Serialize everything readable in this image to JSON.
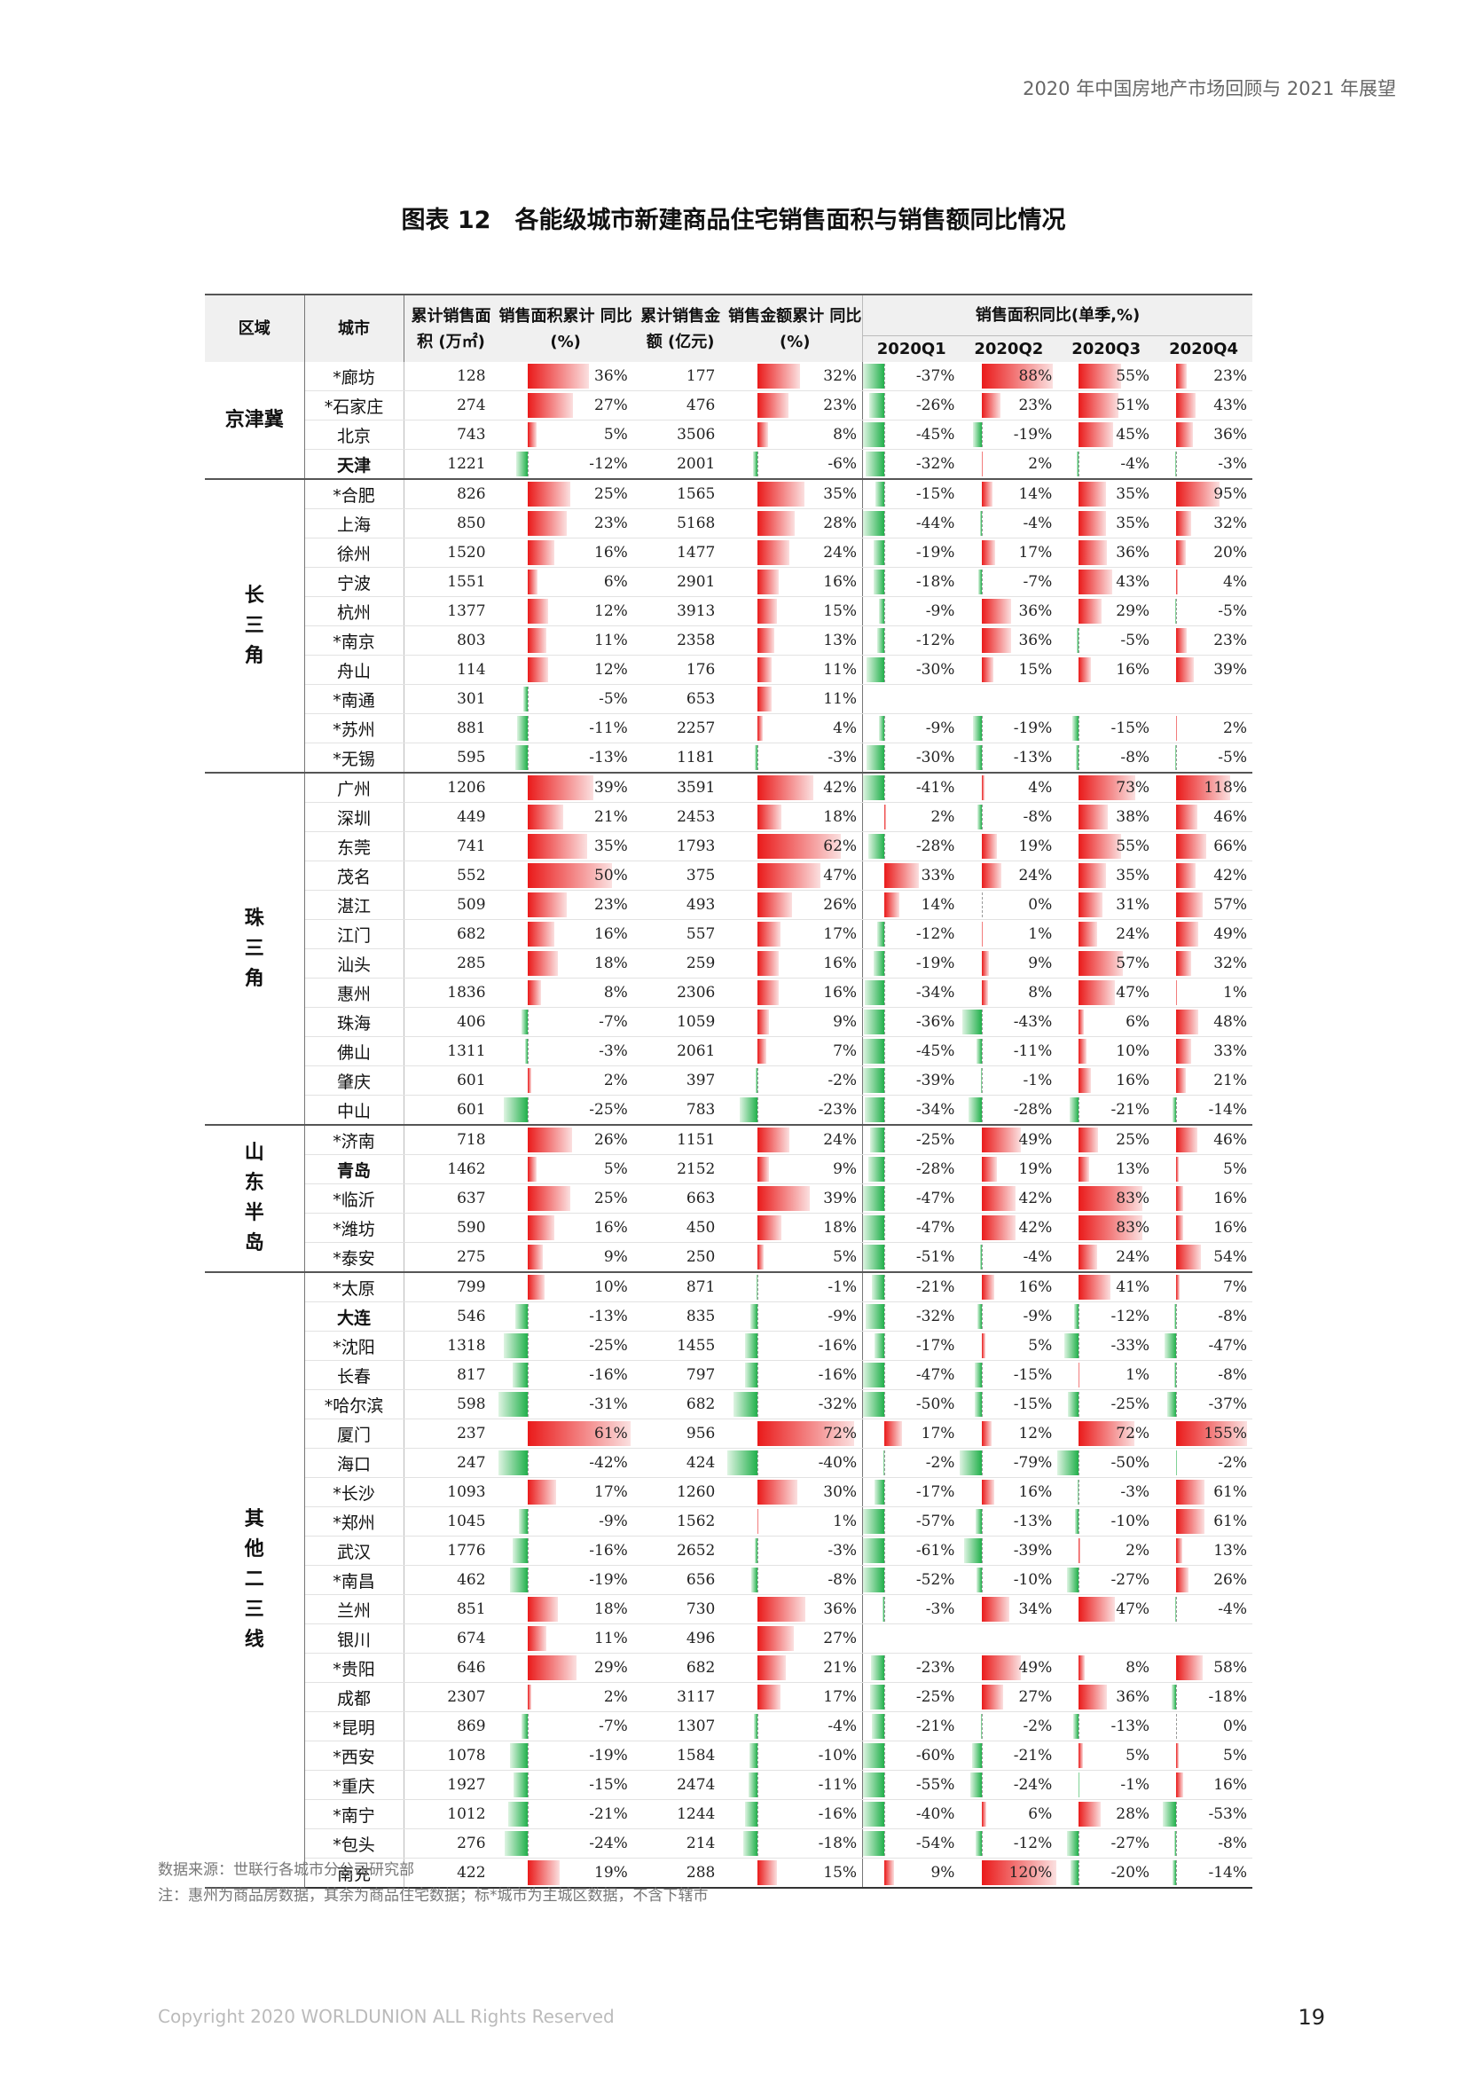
{
  "running_header": "2020 年中国房地产市场回顾与 2021 年展望",
  "title": "图表 12　各能级城市新建商品住宅销售面积与销售额同比情况",
  "table": {
    "headers": {
      "region": "区域",
      "city": "城市",
      "area_cum": "累计销售面积 (万㎡)",
      "area_yoy": "销售面积累计 同比(%)",
      "amount_cum": "累计销售金额 (亿元)",
      "amount_yoy": "销售金额累计 同比(%)",
      "quarterly_group": "销售面积同比(单季,%)",
      "q1": "2020Q1",
      "q2": "2020Q2",
      "q3": "2020Q3",
      "q4": "2020Q4"
    },
    "groups": [
      {
        "region": "京津冀",
        "rows": [
          {
            "city": "*廊坊",
            "area": "128",
            "area_yoy": "36%",
            "amount": "177",
            "amount_yoy": "32%",
            "q1": "-37%",
            "q2": "88%",
            "q3": "55%",
            "q4": "23%"
          },
          {
            "city": "*石家庄",
            "area": "274",
            "area_yoy": "27%",
            "amount": "476",
            "amount_yoy": "23%",
            "q1": "-26%",
            "q2": "23%",
            "q3": "51%",
            "q4": "43%"
          },
          {
            "city": "北京",
            "area": "743",
            "area_yoy": "5%",
            "amount": "3506",
            "amount_yoy": "8%",
            "q1": "-45%",
            "q2": "-19%",
            "q3": "45%",
            "q4": "36%"
          },
          {
            "city": "天津",
            "bold": true,
            "area": "1221",
            "area_yoy": "-12%",
            "amount": "2001",
            "amount_yoy": "-6%",
            "q1": "-32%",
            "q2": "2%",
            "q3": "-4%",
            "q4": "-3%"
          }
        ]
      },
      {
        "region": "长三角",
        "rows": [
          {
            "city": "*合肥",
            "area": "826",
            "area_yoy": "25%",
            "amount": "1565",
            "amount_yoy": "35%",
            "q1": "-15%",
            "q2": "14%",
            "q3": "35%",
            "q4": "95%"
          },
          {
            "city": "上海",
            "area": "850",
            "area_yoy": "23%",
            "amount": "5168",
            "amount_yoy": "28%",
            "q1": "-44%",
            "q2": "-4%",
            "q3": "35%",
            "q4": "32%"
          },
          {
            "city": "徐州",
            "area": "1520",
            "area_yoy": "16%",
            "amount": "1477",
            "amount_yoy": "24%",
            "q1": "-19%",
            "q2": "17%",
            "q3": "36%",
            "q4": "20%"
          },
          {
            "city": "宁波",
            "area": "1551",
            "area_yoy": "6%",
            "amount": "2901",
            "amount_yoy": "16%",
            "q1": "-18%",
            "q2": "-7%",
            "q3": "43%",
            "q4": "4%"
          },
          {
            "city": "杭州",
            "area": "1377",
            "area_yoy": "12%",
            "amount": "3913",
            "amount_yoy": "15%",
            "q1": "-9%",
            "q2": "36%",
            "q3": "29%",
            "q4": "-5%"
          },
          {
            "city": "*南京",
            "area": "803",
            "area_yoy": "11%",
            "amount": "2358",
            "amount_yoy": "13%",
            "q1": "-12%",
            "q2": "36%",
            "q3": "-5%",
            "q4": "23%"
          },
          {
            "city": "舟山",
            "area": "114",
            "area_yoy": "12%",
            "amount": "176",
            "amount_yoy": "11%",
            "q1": "-30%",
            "q2": "15%",
            "q3": "16%",
            "q4": "39%"
          },
          {
            "city": "*南通",
            "area": "301",
            "area_yoy": "-5%",
            "amount": "653",
            "amount_yoy": "11%",
            "q1": "",
            "q2": "",
            "q3": "",
            "q4": ""
          },
          {
            "city": "*苏州",
            "area": "881",
            "area_yoy": "-11%",
            "amount": "2257",
            "amount_yoy": "4%",
            "q1": "-9%",
            "q2": "-19%",
            "q3": "-15%",
            "q4": "2%"
          },
          {
            "city": "*无锡",
            "area": "595",
            "area_yoy": "-13%",
            "amount": "1181",
            "amount_yoy": "-3%",
            "q1": "-30%",
            "q2": "-13%",
            "q3": "-8%",
            "q4": "-5%"
          }
        ]
      },
      {
        "region": "珠三角",
        "rows": [
          {
            "city": "广州",
            "area": "1206",
            "area_yoy": "39%",
            "amount": "3591",
            "amount_yoy": "42%",
            "q1": "-41%",
            "q2": "4%",
            "q3": "73%",
            "q4": "118%"
          },
          {
            "city": "深圳",
            "area": "449",
            "area_yoy": "21%",
            "amount": "2453",
            "amount_yoy": "18%",
            "q1": "2%",
            "q2": "-8%",
            "q3": "38%",
            "q4": "46%"
          },
          {
            "city": "东莞",
            "area": "741",
            "area_yoy": "35%",
            "amount": "1793",
            "amount_yoy": "62%",
            "q1": "-28%",
            "q2": "19%",
            "q3": "55%",
            "q4": "66%"
          },
          {
            "city": "茂名",
            "area": "552",
            "area_yoy": "50%",
            "amount": "375",
            "amount_yoy": "47%",
            "q1": "33%",
            "q2": "24%",
            "q3": "35%",
            "q4": "42%"
          },
          {
            "city": "湛江",
            "area": "509",
            "area_yoy": "23%",
            "amount": "493",
            "amount_yoy": "26%",
            "q1": "14%",
            "q2": "0%",
            "q3": "31%",
            "q4": "57%"
          },
          {
            "city": "江门",
            "area": "682",
            "area_yoy": "16%",
            "amount": "557",
            "amount_yoy": "17%",
            "q1": "-12%",
            "q2": "1%",
            "q3": "24%",
            "q4": "49%"
          },
          {
            "city": "汕头",
            "area": "285",
            "area_yoy": "18%",
            "amount": "259",
            "amount_yoy": "16%",
            "q1": "-19%",
            "q2": "9%",
            "q3": "57%",
            "q4": "32%"
          },
          {
            "city": "惠州",
            "area": "1836",
            "area_yoy": "8%",
            "amount": "2306",
            "amount_yoy": "16%",
            "q1": "-34%",
            "q2": "8%",
            "q3": "47%",
            "q4": "1%"
          },
          {
            "city": "珠海",
            "area": "406",
            "area_yoy": "-7%",
            "amount": "1059",
            "amount_yoy": "9%",
            "q1": "-36%",
            "q2": "-43%",
            "q3": "6%",
            "q4": "48%"
          },
          {
            "city": "佛山",
            "area": "1311",
            "area_yoy": "-3%",
            "amount": "2061",
            "amount_yoy": "7%",
            "q1": "-45%",
            "q2": "-11%",
            "q3": "10%",
            "q4": "33%"
          },
          {
            "city": "肇庆",
            "area": "601",
            "area_yoy": "2%",
            "amount": "397",
            "amount_yoy": "-2%",
            "q1": "-39%",
            "q2": "-1%",
            "q3": "16%",
            "q4": "21%"
          },
          {
            "city": "中山",
            "area": "601",
            "area_yoy": "-25%",
            "amount": "783",
            "amount_yoy": "-23%",
            "q1": "-34%",
            "q2": "-28%",
            "q3": "-21%",
            "q4": "-14%"
          }
        ]
      },
      {
        "region": "山东半岛",
        "rows": [
          {
            "city": "*济南",
            "area": "718",
            "area_yoy": "26%",
            "amount": "1151",
            "amount_yoy": "24%",
            "q1": "-25%",
            "q2": "49%",
            "q3": "25%",
            "q4": "46%"
          },
          {
            "city": "青岛",
            "bold": true,
            "area": "1462",
            "area_yoy": "5%",
            "amount": "2152",
            "amount_yoy": "9%",
            "q1": "-28%",
            "q2": "19%",
            "q3": "13%",
            "q4": "5%"
          },
          {
            "city": "*临沂",
            "area": "637",
            "area_yoy": "25%",
            "amount": "663",
            "amount_yoy": "39%",
            "q1": "-47%",
            "q2": "42%",
            "q3": "83%",
            "q4": "16%"
          },
          {
            "city": "*潍坊",
            "area": "590",
            "area_yoy": "16%",
            "amount": "450",
            "amount_yoy": "18%",
            "q1": "-47%",
            "q2": "42%",
            "q3": "83%",
            "q4": "16%"
          },
          {
            "city": "*泰安",
            "area": "275",
            "area_yoy": "9%",
            "amount": "250",
            "amount_yoy": "5%",
            "q1": "-51%",
            "q2": "-4%",
            "q3": "24%",
            "q4": "54%"
          }
        ]
      },
      {
        "region": "其他二三线",
        "rows": [
          {
            "city": "*太原",
            "area": "799",
            "area_yoy": "10%",
            "amount": "871",
            "amount_yoy": "-1%",
            "q1": "-21%",
            "q2": "16%",
            "q3": "41%",
            "q4": "7%"
          },
          {
            "city": "大连",
            "bold": true,
            "area": "546",
            "area_yoy": "-13%",
            "amount": "835",
            "amount_yoy": "-9%",
            "q1": "-32%",
            "q2": "-9%",
            "q3": "-12%",
            "q4": "-8%"
          },
          {
            "city": "*沈阳",
            "area": "1318",
            "area_yoy": "-25%",
            "amount": "1455",
            "amount_yoy": "-16%",
            "q1": "-17%",
            "q2": "5%",
            "q3": "-33%",
            "q4": "-47%"
          },
          {
            "city": "长春",
            "area": "817",
            "area_yoy": "-16%",
            "amount": "797",
            "amount_yoy": "-16%",
            "q1": "-47%",
            "q2": "-15%",
            "q3": "1%",
            "q4": "-8%"
          },
          {
            "city": "*哈尔滨",
            "area": "598",
            "area_yoy": "-31%",
            "amount": "682",
            "amount_yoy": "-32%",
            "q1": "-50%",
            "q2": "-15%",
            "q3": "-25%",
            "q4": "-37%"
          },
          {
            "city": "厦门",
            "area": "237",
            "area_yoy": "61%",
            "amount": "956",
            "amount_yoy": "72%",
            "q1": "17%",
            "q2": "12%",
            "q3": "72%",
            "q4": "155%"
          },
          {
            "city": "海口",
            "area": "247",
            "area_yoy": "-42%",
            "amount": "424",
            "amount_yoy": "-40%",
            "q1": "-2%",
            "q2": "-79%",
            "q3": "-50%",
            "q4": "-2%"
          },
          {
            "city": "*长沙",
            "area": "1093",
            "area_yoy": "17%",
            "amount": "1260",
            "amount_yoy": "30%",
            "q1": "-17%",
            "q2": "16%",
            "q3": "-3%",
            "q4": "61%"
          },
          {
            "city": "*郑州",
            "area": "1045",
            "area_yoy": "-9%",
            "amount": "1562",
            "amount_yoy": "1%",
            "q1": "-57%",
            "q2": "-13%",
            "q3": "-10%",
            "q4": "61%"
          },
          {
            "city": "武汉",
            "area": "1776",
            "area_yoy": "-16%",
            "amount": "2652",
            "amount_yoy": "-3%",
            "q1": "-61%",
            "q2": "-39%",
            "q3": "2%",
            "q4": "13%"
          },
          {
            "city": "*南昌",
            "area": "462",
            "area_yoy": "-19%",
            "amount": "656",
            "amount_yoy": "-8%",
            "q1": "-52%",
            "q2": "-10%",
            "q3": "-27%",
            "q4": "26%"
          },
          {
            "city": "兰州",
            "area": "851",
            "area_yoy": "18%",
            "amount": "730",
            "amount_yoy": "36%",
            "q1": "-3%",
            "q2": "34%",
            "q3": "47%",
            "q4": "-4%"
          },
          {
            "city": "银川",
            "area": "674",
            "area_yoy": "11%",
            "amount": "496",
            "amount_yoy": "27%",
            "q1": "",
            "q2": "",
            "q3": "",
            "q4": ""
          },
          {
            "city": "*贵阳",
            "area": "646",
            "area_yoy": "29%",
            "amount": "682",
            "amount_yoy": "21%",
            "q1": "-23%",
            "q2": "49%",
            "q3": "8%",
            "q4": "58%"
          },
          {
            "city": "成都",
            "area": "2307",
            "area_yoy": "2%",
            "amount": "3117",
            "amount_yoy": "17%",
            "q1": "-25%",
            "q2": "27%",
            "q3": "36%",
            "q4": "-18%"
          },
          {
            "city": "*昆明",
            "area": "869",
            "area_yoy": "-7%",
            "amount": "1307",
            "amount_yoy": "-4%",
            "q1": "-21%",
            "q2": "-2%",
            "q3": "-13%",
            "q4": "0%"
          },
          {
            "city": "*西安",
            "area": "1078",
            "area_yoy": "-19%",
            "amount": "1584",
            "amount_yoy": "-10%",
            "q1": "-60%",
            "q2": "-21%",
            "q3": "5%",
            "q4": "5%"
          },
          {
            "city": "*重庆",
            "area": "1927",
            "area_yoy": "-15%",
            "amount": "2474",
            "amount_yoy": "-11%",
            "q1": "-55%",
            "q2": "-24%",
            "q3": "-1%",
            "q4": "16%"
          },
          {
            "city": "*南宁",
            "area": "1012",
            "area_yoy": "-21%",
            "amount": "1244",
            "amount_yoy": "-16%",
            "q1": "-40%",
            "q2": "6%",
            "q3": "28%",
            "q4": "-53%"
          },
          {
            "city": "*包头",
            "area": "276",
            "area_yoy": "-24%",
            "amount": "214",
            "amount_yoy": "-18%",
            "q1": "-54%",
            "q2": "-12%",
            "q3": "-27%",
            "q4": "-8%"
          },
          {
            "city": "南充",
            "area": "422",
            "area_yoy": "19%",
            "amount": "288",
            "amount_yoy": "15%",
            "q1": "9%",
            "q2": "120%",
            "q3": "-20%",
            "q4": "-14%"
          }
        ]
      }
    ]
  },
  "bar_colors": {
    "positive": "#ea1a1a",
    "negative": "#21b04b"
  },
  "source_note": "数据来源：世联行各城市分公司研究部",
  "footnote": "注：惠州为商品房数据，其余为商品住宅数据；标*城市为主城区数据，不含下辖市",
  "copyright": "Copyright 2020 WORLDUNION ALL Rights Reserved",
  "page_number": "19"
}
